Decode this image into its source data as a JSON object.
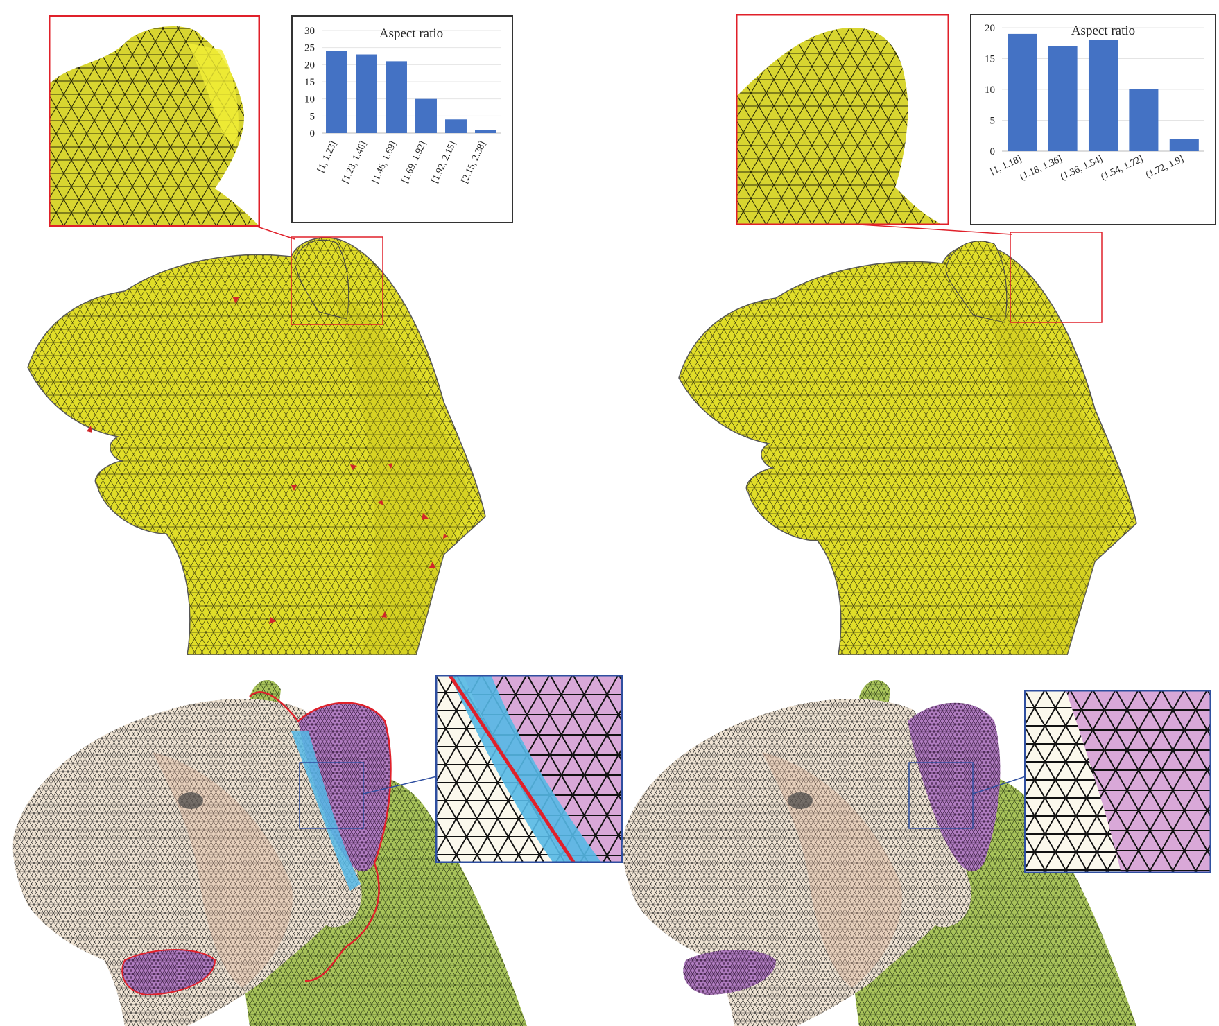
{
  "figure": {
    "panels": [
      {
        "id": "top-left",
        "mesh_color": "#e3e02a",
        "inset_border": "#e0202a",
        "defect_color": "#d0262a"
      },
      {
        "id": "top-right",
        "mesh_color": "#e3e02a",
        "inset_border": "#e0202a"
      },
      {
        "id": "bottom-left",
        "segment_colors": [
          "#efe3d3",
          "#b07cc0",
          "#8fb04a",
          "#55b8e6"
        ],
        "inset_border": "#2f4fa0",
        "boundary_color": "#e0202a"
      },
      {
        "id": "bottom-right",
        "segment_colors": [
          "#efe3d3",
          "#b07cc0",
          "#8fb04a"
        ],
        "inset_border": "#2f4fa0"
      }
    ]
  },
  "chart_data": [
    {
      "type": "bar",
      "title": "Aspect ratio",
      "categories": [
        "[1, 1.23]",
        "[1.23, 1.46]",
        "[1.46, 1.69]",
        "[1.69, 1.92]",
        "[1.92, 2.15]",
        "[2.15, 2.38]"
      ],
      "values": [
        24,
        23,
        21,
        10,
        4,
        1
      ],
      "ylim": [
        0,
        30
      ],
      "yticks": [
        0,
        5,
        10,
        15,
        20,
        25,
        30
      ],
      "xlabel": "",
      "ylabel": "",
      "bar_color": "#4472c4",
      "grid": true
    },
    {
      "type": "bar",
      "title": "Aspect ratio",
      "categories": [
        "[1, 1.18]",
        "(1.18, 1.36]",
        "(1.36, 1.54]",
        "(1.54, 1.72]",
        "(1.72, 1.9]"
      ],
      "values": [
        19,
        17,
        18,
        10,
        2
      ],
      "ylim": [
        0,
        20
      ],
      "yticks": [
        0,
        5,
        10,
        15,
        20
      ],
      "xlabel": "",
      "ylabel": "",
      "bar_color": "#4472c4",
      "grid": true
    }
  ]
}
